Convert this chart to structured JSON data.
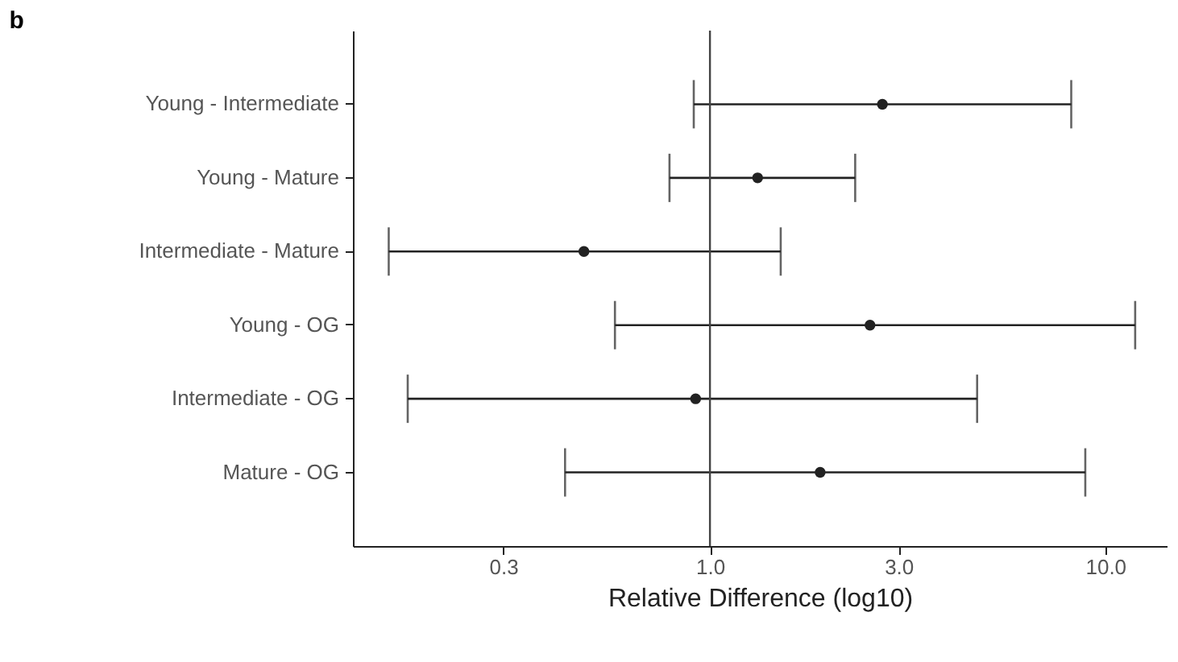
{
  "chart_data": {
    "type": "scatter",
    "orientation": "horizontal",
    "title": "b",
    "xlabel": "Relative Difference (log10)",
    "categories": [
      "Young - Intermediate",
      "Young - Mature",
      "Intermediate - Mature",
      "Young - OG",
      "Intermediate - OG",
      "Mature - OG"
    ],
    "values": [
      2.73,
      1.32,
      0.48,
      2.54,
      0.92,
      1.9
    ],
    "errors": [
      [
        0.91,
        8.2
      ],
      [
        0.79,
        2.33
      ],
      [
        0.154,
        1.51
      ],
      [
        0.575,
        11.9
      ],
      [
        0.172,
        4.74
      ],
      [
        0.43,
        8.9
      ]
    ],
    "color": "#222222",
    "marker": "circle",
    "log": "x",
    "grid": false,
    "xlim": [
      0.125,
      14.3
    ],
    "xticks": [
      0.3,
      {
        "value": 1,
        "label": "1.0"
      },
      {
        "value": 3,
        "label": "3.0"
      },
      {
        "value": 10,
        "label": "10.0"
      }
    ],
    "ref_lines": [
      {
        "axis": "x",
        "value": 1,
        "color": "#444444"
      }
    ]
  }
}
